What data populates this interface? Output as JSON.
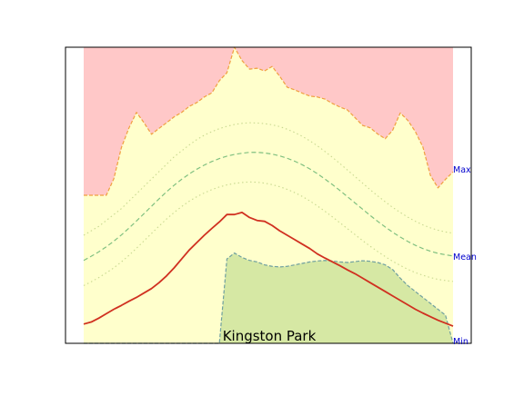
{
  "chart_data": {
    "type": "area",
    "title": "Kingston Park",
    "xlabel": "",
    "ylabel": "",
    "axes_visible": false,
    "grid": false,
    "ylim": [
      0,
      100
    ],
    "n_points": 50,
    "reference_labels": {
      "max": "Max",
      "mean": "Mean",
      "min": "Min"
    },
    "colors": {
      "above_band": "#ffc8c8",
      "band": "#ffffcc",
      "below_band": "#d6e8a4",
      "max_line": "#f0a040",
      "min_line": "#70a0a0",
      "mean_line": "#80c080",
      "std_line": "#c8d890",
      "current_line": "#d03020",
      "label_text": "#0000cc"
    },
    "series": [
      {
        "key": "max",
        "style": "dashed",
        "values": [
          50.0,
          50.0,
          50.0,
          50.0,
          55.6,
          66.1,
          72.7,
          78.0,
          74.5,
          70.6,
          72.6,
          74.5,
          76.5,
          78.0,
          80.0,
          81.3,
          83.2,
          84.6,
          88.7,
          91.4,
          100.0,
          95.5,
          92.6,
          92.9,
          92.0,
          93.5,
          90.2,
          86.5,
          85.6,
          84.5,
          83.5,
          83.2,
          82.5,
          81.0,
          79.8,
          78.8,
          76.2,
          73.6,
          72.8,
          70.7,
          69.1,
          72.0,
          77.8,
          75.3,
          71.5,
          66.3,
          56.7,
          52.5,
          55.4,
          57.9
        ]
      },
      {
        "key": "mean_plus_std",
        "style": "dotted",
        "values": [
          36.5,
          38.0,
          39.5,
          41.5,
          43.5,
          45.5,
          48.0,
          50.5,
          53.0,
          55.5,
          58.0,
          60.5,
          63.0,
          65.0,
          67.0,
          68.8,
          70.3,
          71.5,
          72.5,
          73.3,
          73.9,
          74.3,
          74.5,
          74.4,
          74.2,
          73.8,
          73.2,
          72.3,
          71.2,
          69.9,
          68.4,
          66.7,
          64.8,
          62.8,
          60.7,
          58.5,
          56.3,
          54.1,
          51.9,
          49.8,
          47.8,
          45.9,
          44.2,
          42.6,
          41.2,
          40.0,
          39.0,
          38.2,
          37.6,
          37.2
        ]
      },
      {
        "key": "mean",
        "style": "dashed",
        "values": [
          28.0,
          29.4,
          30.9,
          32.6,
          34.5,
          36.6,
          38.9,
          41.3,
          43.8,
          46.3,
          48.8,
          51.2,
          53.4,
          55.4,
          57.2,
          58.8,
          60.2,
          61.4,
          62.4,
          63.2,
          63.8,
          64.2,
          64.5,
          64.5,
          64.3,
          63.9,
          63.3,
          62.5,
          61.5,
          60.3,
          58.9,
          57.3,
          55.5,
          53.6,
          51.6,
          49.5,
          47.4,
          45.3,
          43.2,
          41.2,
          39.3,
          37.5,
          35.9,
          34.4,
          33.1,
          32.0,
          31.1,
          30.4,
          29.9,
          29.5
        ]
      },
      {
        "key": "mean_minus_std",
        "style": "dotted",
        "values": [
          19.5,
          20.8,
          22.2,
          23.8,
          25.5,
          27.5,
          29.7,
          32.1,
          34.6,
          37.1,
          39.6,
          42.0,
          44.2,
          46.2,
          48.0,
          49.5,
          50.8,
          51.9,
          52.8,
          53.5,
          54.0,
          54.3,
          54.5,
          54.4,
          54.1,
          53.6,
          52.9,
          52.0,
          50.9,
          49.6,
          48.1,
          46.4,
          44.6,
          42.7,
          40.7,
          38.7,
          36.7,
          34.7,
          32.8,
          31.0,
          29.3,
          27.7,
          26.3,
          25.0,
          23.9,
          23.0,
          22.2,
          21.6,
          21.2,
          20.9
        ]
      },
      {
        "key": "min",
        "style": "dashed",
        "values": [
          0.0,
          0.0,
          0.0,
          0.0,
          0.0,
          0.0,
          0.0,
          0.0,
          0.0,
          0.0,
          0.0,
          0.0,
          0.0,
          0.0,
          0.0,
          0.0,
          0.0,
          0.0,
          0.0,
          28.5,
          30.5,
          29.0,
          28.0,
          27.5,
          26.5,
          26.0,
          25.8,
          26.0,
          26.5,
          27.0,
          27.5,
          27.8,
          28.0,
          27.8,
          27.5,
          27.3,
          27.6,
          27.9,
          27.7,
          27.3,
          26.5,
          24.9,
          22.0,
          19.5,
          17.5,
          15.5,
          13.5,
          11.5,
          9.5,
          0.0
        ]
      },
      {
        "key": "current",
        "style": "solid",
        "values": [
          6.5,
          7.2,
          8.5,
          10.0,
          11.5,
          12.8,
          14.2,
          15.5,
          17.0,
          18.5,
          20.5,
          22.8,
          25.5,
          28.5,
          31.5,
          34.0,
          36.5,
          38.8,
          41.0,
          43.5,
          43.5,
          44.2,
          42.5,
          41.5,
          41.2,
          39.8,
          38.0,
          36.5,
          35.0,
          33.5,
          32.0,
          30.2,
          28.8,
          27.5,
          26.2,
          24.8,
          23.5,
          22.0,
          20.5,
          19.0,
          17.5,
          16.0,
          14.5,
          13.0,
          11.5,
          10.2,
          9.0,
          7.8,
          6.8,
          5.8
        ]
      }
    ]
  }
}
